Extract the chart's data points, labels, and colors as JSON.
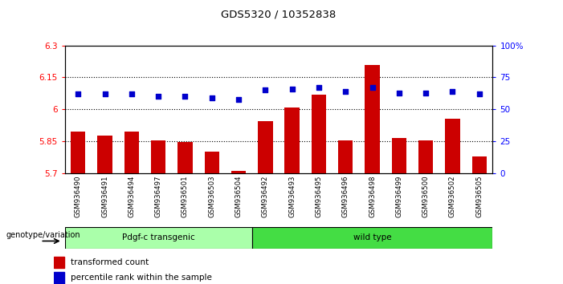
{
  "title": "GDS5320 / 10352838",
  "categories": [
    "GSM936490",
    "GSM936491",
    "GSM936494",
    "GSM936497",
    "GSM936501",
    "GSM936503",
    "GSM936504",
    "GSM936492",
    "GSM936493",
    "GSM936495",
    "GSM936496",
    "GSM936498",
    "GSM936499",
    "GSM936500",
    "GSM936502",
    "GSM936505"
  ],
  "bar_values": [
    5.895,
    5.875,
    5.895,
    5.855,
    5.845,
    5.8,
    5.71,
    5.945,
    6.01,
    6.07,
    5.855,
    6.21,
    5.865,
    5.855,
    5.955,
    5.78
  ],
  "percentile_values": [
    62,
    62,
    62,
    60,
    60,
    59,
    58,
    65,
    66,
    67,
    64,
    67,
    63,
    63,
    64,
    62
  ],
  "bar_color": "#cc0000",
  "percentile_color": "#0000cc",
  "ymin": 5.7,
  "ymax": 6.3,
  "yticks": [
    5.7,
    5.85,
    6.0,
    6.15,
    6.3
  ],
  "ytick_labels": [
    "5.7",
    "5.85",
    "6",
    "6.15",
    "6.3"
  ],
  "y2min": 0,
  "y2max": 100,
  "y2ticks": [
    0,
    25,
    50,
    75,
    100
  ],
  "y2tick_labels": [
    "0",
    "25",
    "50",
    "75",
    "100%"
  ],
  "group1_label": "Pdgf-c transgenic",
  "group2_label": "wild type",
  "group1_color": "#aaffaa",
  "group2_color": "#44dd44",
  "group1_count": 7,
  "group2_count": 9,
  "genotype_label": "genotype/variation",
  "legend_bar_label": "transformed count",
  "legend_pct_label": "percentile rank within the sample",
  "background_color": "#ffffff"
}
